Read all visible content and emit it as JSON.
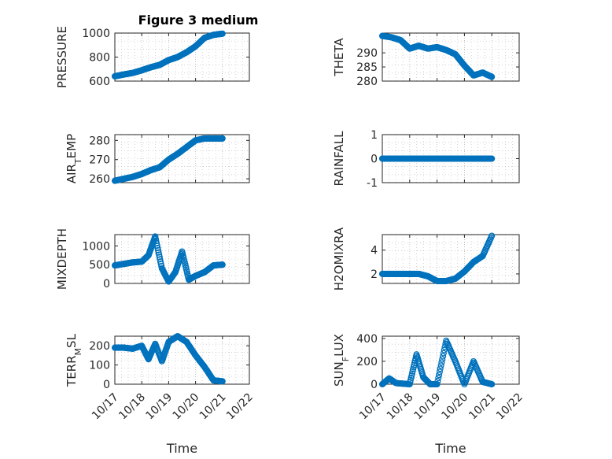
{
  "figure_title": "Figure 3 medium",
  "colors": {
    "marker": "#0072BD",
    "axis": "#262626",
    "grid": "#b8b8b8"
  },
  "chart_data": [
    {
      "type": "scatter",
      "ylabel": "PRESSURE",
      "ylim": [
        600,
        1000
      ],
      "yticks": [
        600,
        800,
        1000
      ],
      "yticklabels": [
        "600",
        "800",
        "1000"
      ],
      "x": [
        "2020-10-17 00:00",
        "2020-10-17 08:00",
        "2020-10-17 16:00",
        "2020-10-18 00:00",
        "2020-10-18 08:00",
        "2020-10-18 16:00",
        "2020-10-19 00:00",
        "2020-10-19 08:00",
        "2020-10-19 16:00",
        "2020-10-20 00:00",
        "2020-10-20 08:00",
        "2020-10-20 16:00",
        "2020-10-21 00:00"
      ],
      "y": [
        640,
        655,
        668,
        690,
        715,
        735,
        775,
        800,
        840,
        890,
        960,
        985,
        995
      ],
      "xlim": [
        "2020-10-17",
        "2020-10-22"
      ],
      "xticklabels": [
        "10/17",
        "10/18",
        "10/19",
        "10/20",
        "10/21",
        "10/22"
      ],
      "xlabel": "",
      "grid": true,
      "title": "Figure 3 medium"
    },
    {
      "type": "scatter",
      "ylabel": "THETA",
      "ylim": [
        280,
        297
      ],
      "yticks": [
        280,
        285,
        290
      ],
      "yticklabels": [
        "280",
        "285",
        "290"
      ],
      "x": [
        "2020-10-17 00:00",
        "2020-10-17 08:00",
        "2020-10-17 16:00",
        "2020-10-18 00:00",
        "2020-10-18 08:00",
        "2020-10-18 16:00",
        "2020-10-19 00:00",
        "2020-10-19 08:00",
        "2020-10-19 16:00",
        "2020-10-20 00:00",
        "2020-10-20 08:00",
        "2020-10-20 16:00",
        "2020-10-21 00:00"
      ],
      "y": [
        296,
        295.5,
        294.5,
        291.5,
        292.5,
        291.5,
        292,
        291,
        289.5,
        285.5,
        282,
        283,
        281.5
      ],
      "xlim": [
        "2020-10-17",
        "2020-10-22"
      ],
      "xticklabels": [
        "10/17",
        "10/18",
        "10/19",
        "10/20",
        "10/21",
        "10/22"
      ],
      "xlabel": "",
      "grid": true
    },
    {
      "type": "scatter",
      "ylabel": "AIR_TEMP",
      "ylim": [
        258,
        283
      ],
      "yticks": [
        260,
        270,
        280
      ],
      "yticklabels": [
        "260",
        "270",
        "280"
      ],
      "x": [
        "2020-10-17 00:00",
        "2020-10-17 08:00",
        "2020-10-17 16:00",
        "2020-10-18 00:00",
        "2020-10-18 08:00",
        "2020-10-18 16:00",
        "2020-10-19 00:00",
        "2020-10-19 08:00",
        "2020-10-19 16:00",
        "2020-10-20 00:00",
        "2020-10-20 08:00",
        "2020-10-20 16:00",
        "2020-10-21 00:00"
      ],
      "y": [
        259,
        260,
        261,
        262.5,
        264.5,
        266,
        270,
        273,
        276.5,
        280,
        281,
        281,
        281
      ],
      "xlim": [
        "2020-10-17",
        "2020-10-22"
      ],
      "xticklabels": [
        "10/17",
        "10/18",
        "10/19",
        "10/20",
        "10/21",
        "10/22"
      ],
      "xlabel": "",
      "grid": true
    },
    {
      "type": "scatter",
      "ylabel": "RAINFALL",
      "ylim": [
        -1,
        1
      ],
      "yticks": [
        -1,
        0,
        1
      ],
      "yticklabels": [
        "-1",
        "0",
        "1"
      ],
      "x": [
        "2020-10-17 00:00",
        "2020-10-17 08:00",
        "2020-10-17 16:00",
        "2020-10-18 00:00",
        "2020-10-18 08:00",
        "2020-10-18 16:00",
        "2020-10-19 00:00",
        "2020-10-19 08:00",
        "2020-10-19 16:00",
        "2020-10-20 00:00",
        "2020-10-20 08:00",
        "2020-10-20 16:00",
        "2020-10-21 00:00"
      ],
      "y": [
        0,
        0,
        0,
        0,
        0,
        0,
        0,
        0,
        0,
        0,
        0,
        0,
        0
      ],
      "xlim": [
        "2020-10-17",
        "2020-10-22"
      ],
      "xticklabels": [
        "10/17",
        "10/18",
        "10/19",
        "10/20",
        "10/21",
        "10/22"
      ],
      "xlabel": "",
      "grid": true
    },
    {
      "type": "scatter",
      "ylabel": "MIXDEPTH",
      "ylim": [
        0,
        1300
      ],
      "yticks": [
        0,
        500,
        1000
      ],
      "yticklabels": [
        "0",
        "500",
        "1000"
      ],
      "x": [
        "2020-10-17 00:00",
        "2020-10-17 08:00",
        "2020-10-17 16:00",
        "2020-10-18 00:00",
        "2020-10-18 06:00",
        "2020-10-18 12:00",
        "2020-10-18 18:00",
        "2020-10-19 00:00",
        "2020-10-19 06:00",
        "2020-10-19 12:00",
        "2020-10-19 18:00",
        "2020-10-20 00:00",
        "2020-10-20 08:00",
        "2020-10-20 16:00",
        "2020-10-21 00:00"
      ],
      "y": [
        480,
        520,
        560,
        580,
        750,
        1250,
        400,
        50,
        300,
        850,
        100,
        200,
        300,
        480,
        500
      ],
      "xlim": [
        "2020-10-17",
        "2020-10-22"
      ],
      "xticklabels": [
        "10/17",
        "10/18",
        "10/19",
        "10/20",
        "10/21",
        "10/22"
      ],
      "xlabel": "",
      "grid": true
    },
    {
      "type": "scatter",
      "ylabel": "H2OMIXRA",
      "ylim": [
        1.2,
        5.3
      ],
      "yticks": [
        2,
        4
      ],
      "yticklabels": [
        "2",
        "4"
      ],
      "x": [
        "2020-10-17 00:00",
        "2020-10-17 08:00",
        "2020-10-17 16:00",
        "2020-10-18 00:00",
        "2020-10-18 08:00",
        "2020-10-18 16:00",
        "2020-10-19 00:00",
        "2020-10-19 08:00",
        "2020-10-19 16:00",
        "2020-10-20 00:00",
        "2020-10-20 08:00",
        "2020-10-20 16:00",
        "2020-10-21 00:00"
      ],
      "y": [
        2,
        2,
        2,
        2,
        2,
        1.8,
        1.4,
        1.4,
        1.6,
        2.2,
        3,
        3.5,
        5.2
      ],
      "xlim": [
        "2020-10-17",
        "2020-10-22"
      ],
      "xticklabels": [
        "10/17",
        "10/18",
        "10/19",
        "10/20",
        "10/21",
        "10/22"
      ],
      "xlabel": "",
      "grid": true
    },
    {
      "type": "scatter",
      "ylabel": "TERR_MSL",
      "ylim": [
        0,
        250
      ],
      "yticks": [
        0,
        100,
        200
      ],
      "yticklabels": [
        "0",
        "100",
        "200"
      ],
      "x": [
        "2020-10-17 00:00",
        "2020-10-17 08:00",
        "2020-10-17 16:00",
        "2020-10-18 00:00",
        "2020-10-18 06:00",
        "2020-10-18 12:00",
        "2020-10-18 18:00",
        "2020-10-19 00:00",
        "2020-10-19 08:00",
        "2020-10-19 16:00",
        "2020-10-20 00:00",
        "2020-10-20 08:00",
        "2020-10-20 16:00",
        "2020-10-21 00:00"
      ],
      "y": [
        190,
        190,
        185,
        200,
        130,
        210,
        120,
        220,
        250,
        220,
        150,
        90,
        20,
        15
      ],
      "xlim": [
        "2020-10-17",
        "2020-10-22"
      ],
      "xticklabels": [
        "10/17",
        "10/18",
        "10/19",
        "10/20",
        "10/21",
        "10/22"
      ],
      "xlabel": "Time",
      "grid": true
    },
    {
      "type": "scatter",
      "ylabel": "SUN_FLUX",
      "ylim": [
        0,
        420
      ],
      "yticks": [
        0,
        200,
        400
      ],
      "yticklabels": [
        "0",
        "200",
        "400"
      ],
      "x": [
        "2020-10-17 00:00",
        "2020-10-17 06:00",
        "2020-10-17 12:00",
        "2020-10-18 00:00",
        "2020-10-18 06:00",
        "2020-10-18 12:00",
        "2020-10-18 18:00",
        "2020-10-19 00:00",
        "2020-10-19 08:00",
        "2020-10-19 16:00",
        "2020-10-20 00:00",
        "2020-10-20 08:00",
        "2020-10-20 16:00",
        "2020-10-21 00:00"
      ],
      "y": [
        0,
        50,
        10,
        0,
        260,
        60,
        0,
        0,
        380,
        200,
        0,
        200,
        20,
        0
      ],
      "xlim": [
        "2020-10-17",
        "2020-10-22"
      ],
      "xticklabels": [
        "10/17",
        "10/18",
        "10/19",
        "10/20",
        "10/21",
        "10/22"
      ],
      "xlabel": "Time",
      "grid": true
    }
  ]
}
